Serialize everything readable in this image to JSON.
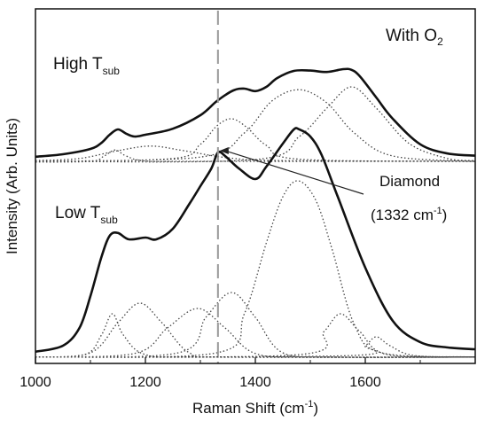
{
  "chart_data": {
    "type": "line",
    "xlabel_main": "Raman Shift (cm",
    "xlabel_sup": "-1",
    "xlabel_close": ")",
    "ylabel": "Intensity (Arb. Units)",
    "xlim": [
      1000,
      1800
    ],
    "ylim": [
      0,
      1
    ],
    "x_ticks": [
      1000,
      1200,
      1400,
      1600
    ],
    "y_ticks_visible": false,
    "marker_line": {
      "x": 1332,
      "style": "dashed",
      "color": "#999999"
    },
    "annotations": {
      "top_right": {
        "main": "With O",
        "sub": "2"
      },
      "top_panel": {
        "main": "High T",
        "sub": "sub"
      },
      "bottom_panel": {
        "main": "Low T",
        "sub": "sub"
      },
      "diamond_line1": "Diamond",
      "diamond_line2_pre": "(1332 cm",
      "diamond_line2_sup": "-1",
      "diamond_line2_post": ")",
      "arrow_target": {
        "x": 1332,
        "y": 0.595
      }
    },
    "series": [
      {
        "role": "fit",
        "panel": "top",
        "style": "solid",
        "color": "#111111",
        "x": [
          1000,
          1050,
          1100,
          1120,
          1135,
          1150,
          1165,
          1180,
          1200,
          1250,
          1300,
          1330,
          1360,
          1380,
          1400,
          1420,
          1440,
          1470,
          1500,
          1530,
          1560,
          1575,
          1590,
          1620,
          1650,
          1700,
          1750,
          1800
        ],
        "y": [
          0.583,
          0.59,
          0.605,
          0.622,
          0.645,
          0.66,
          0.648,
          0.64,
          0.645,
          0.662,
          0.7,
          0.74,
          0.77,
          0.775,
          0.768,
          0.78,
          0.805,
          0.825,
          0.826,
          0.822,
          0.83,
          0.828,
          0.81,
          0.75,
          0.69,
          0.618,
          0.592,
          0.586
        ]
      },
      {
        "role": "component",
        "panel": "top",
        "style": "dotted",
        "color": "#444444",
        "x": [
          1000,
          1100,
          1125,
          1145,
          1165,
          1200,
          1300,
          1800
        ],
        "y": [
          0.568,
          0.57,
          0.585,
          0.602,
          0.585,
          0.571,
          0.57,
          0.57
        ]
      },
      {
        "role": "component",
        "panel": "top",
        "style": "dotted",
        "color": "#444444",
        "x": [
          1000,
          1080,
          1150,
          1210,
          1270,
          1350,
          1450,
          1800
        ],
        "y": [
          0.572,
          0.578,
          0.6,
          0.613,
          0.6,
          0.58,
          0.572,
          0.57
        ]
      },
      {
        "role": "component",
        "panel": "top",
        "style": "dotted",
        "color": "#444444",
        "x": [
          1000,
          1250,
          1300,
          1330,
          1357,
          1385,
          1420,
          1480,
          1800
        ],
        "y": [
          0.57,
          0.578,
          0.618,
          0.67,
          0.69,
          0.665,
          0.615,
          0.576,
          0.57
        ]
      },
      {
        "role": "component",
        "panel": "top",
        "style": "dotted",
        "color": "#444444",
        "x": [
          1000,
          1300,
          1380,
          1430,
          1480,
          1530,
          1580,
          1650,
          1800
        ],
        "y": [
          0.57,
          0.582,
          0.65,
          0.74,
          0.772,
          0.735,
          0.65,
          0.585,
          0.57
        ]
      },
      {
        "role": "component",
        "panel": "top",
        "style": "dotted",
        "color": "#444444",
        "x": [
          1000,
          1400,
          1480,
          1530,
          1575,
          1620,
          1680,
          1750,
          1800
        ],
        "y": [
          0.57,
          0.575,
          0.64,
          0.72,
          0.78,
          0.72,
          0.62,
          0.578,
          0.572
        ]
      },
      {
        "role": "fit",
        "panel": "bottom",
        "style": "solid",
        "color": "#111111",
        "x": [
          1000,
          1050,
          1080,
          1100,
          1120,
          1135,
          1150,
          1170,
          1200,
          1220,
          1250,
          1280,
          1300,
          1320,
          1332,
          1345,
          1370,
          1400,
          1420,
          1450,
          1470,
          1480,
          1500,
          1520,
          1550,
          1600,
          1650,
          1700,
          1750,
          1800
        ],
        "y": [
          0.033,
          0.05,
          0.1,
          0.19,
          0.3,
          0.36,
          0.368,
          0.35,
          0.355,
          0.35,
          0.38,
          0.45,
          0.5,
          0.55,
          0.595,
          0.585,
          0.55,
          0.52,
          0.555,
          0.62,
          0.66,
          0.66,
          0.64,
          0.59,
          0.47,
          0.27,
          0.12,
          0.06,
          0.045,
          0.04
        ]
      },
      {
        "role": "component",
        "panel": "bottom",
        "style": "dotted",
        "color": "#444444",
        "x": [
          1000,
          1090,
          1120,
          1140,
          1160,
          1200,
          1300,
          1800
        ],
        "y": [
          0.018,
          0.025,
          0.08,
          0.14,
          0.08,
          0.025,
          0.018,
          0.018
        ]
      },
      {
        "role": "component",
        "panel": "bottom",
        "style": "dotted",
        "color": "#444444",
        "x": [
          1000,
          1100,
          1150,
          1190,
          1230,
          1280,
          1350,
          1800
        ],
        "y": [
          0.018,
          0.03,
          0.115,
          0.17,
          0.115,
          0.03,
          0.018,
          0.018
        ]
      },
      {
        "role": "component",
        "panel": "bottom",
        "style": "dotted",
        "color": "#444444",
        "x": [
          1000,
          1180,
          1240,
          1295,
          1345,
          1400,
          1500,
          1800
        ],
        "y": [
          0.018,
          0.028,
          0.1,
          0.155,
          0.1,
          0.028,
          0.018,
          0.018
        ]
      },
      {
        "role": "component",
        "panel": "bottom",
        "style": "dotted",
        "color": "#444444",
        "x": [
          1000,
          1260,
          1310,
          1357,
          1400,
          1450,
          1550,
          1800
        ],
        "y": [
          0.018,
          0.03,
          0.13,
          0.2,
          0.13,
          0.03,
          0.018,
          0.018
        ]
      },
      {
        "role": "component",
        "panel": "bottom",
        "style": "dotted",
        "color": "#444444",
        "x": [
          1000,
          1330,
          1380,
          1420,
          1450,
          1478,
          1510,
          1540,
          1580,
          1630,
          1800
        ],
        "y": [
          0.018,
          0.03,
          0.14,
          0.34,
          0.47,
          0.515,
          0.46,
          0.32,
          0.11,
          0.03,
          0.018
        ]
      },
      {
        "role": "component",
        "panel": "bottom",
        "style": "dotted",
        "color": "#444444",
        "x": [
          1000,
          1480,
          1525,
          1555,
          1590,
          1640,
          1800
        ],
        "y": [
          0.018,
          0.025,
          0.09,
          0.14,
          0.09,
          0.025,
          0.018
        ]
      },
      {
        "role": "component",
        "panel": "bottom",
        "style": "dotted",
        "color": "#444444",
        "x": [
          1000,
          1570,
          1600,
          1620,
          1645,
          1690,
          1800
        ],
        "y": [
          0.018,
          0.022,
          0.05,
          0.075,
          0.05,
          0.022,
          0.018
        ]
      }
    ]
  }
}
